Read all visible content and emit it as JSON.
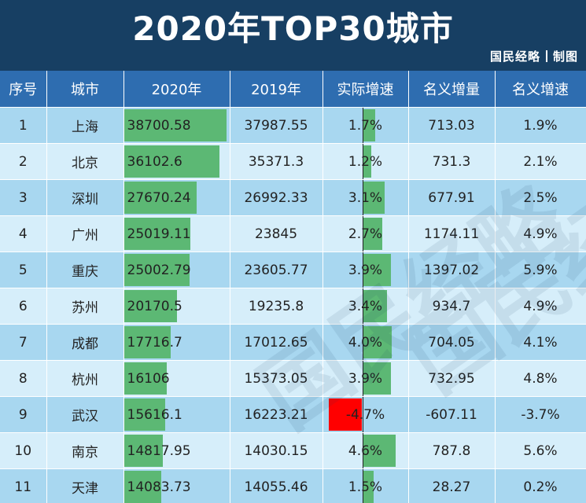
{
  "title": "2020年TOP30城市",
  "credit": {
    "brand": "国民经略",
    "label": "制图"
  },
  "watermark": "国民经略",
  "table": {
    "headers": [
      "序号",
      "城市",
      "2020年",
      "2019年",
      "实际增速",
      "名义增量",
      "名义增速"
    ],
    "rows": [
      {
        "rank": "1",
        "city": "上海",
        "y2020": "38700.58",
        "y2019": "37987.55",
        "real_growth": "1.7%",
        "real_growth_value": 1.7,
        "nominal_increase": "713.03",
        "nominal_growth": "1.9%"
      },
      {
        "rank": "2",
        "city": "北京",
        "y2020": "36102.6",
        "y2019": "35371.3",
        "real_growth": "1.2%",
        "real_growth_value": 1.2,
        "nominal_increase": "731.3",
        "nominal_growth": "2.1%"
      },
      {
        "rank": "3",
        "city": "深圳",
        "y2020": "27670.24",
        "y2019": "26992.33",
        "real_growth": "3.1%",
        "real_growth_value": 3.1,
        "nominal_increase": "677.91",
        "nominal_growth": "2.5%"
      },
      {
        "rank": "4",
        "city": "广州",
        "y2020": "25019.11",
        "y2019": "23845",
        "real_growth": "2.7%",
        "real_growth_value": 2.7,
        "nominal_increase": "1174.11",
        "nominal_growth": "4.9%"
      },
      {
        "rank": "5",
        "city": "重庆",
        "y2020": "25002.79",
        "y2019": "23605.77",
        "real_growth": "3.9%",
        "real_growth_value": 3.9,
        "nominal_increase": "1397.02",
        "nominal_growth": "5.9%"
      },
      {
        "rank": "6",
        "city": "苏州",
        "y2020": "20170.5",
        "y2019": "19235.8",
        "real_growth": "3.4%",
        "real_growth_value": 3.4,
        "nominal_increase": "934.7",
        "nominal_growth": "4.9%"
      },
      {
        "rank": "7",
        "city": "成都",
        "y2020": "17716.7",
        "y2019": "17012.65",
        "real_growth": "4.0%",
        "real_growth_value": 4.0,
        "nominal_increase": "704.05",
        "nominal_growth": "4.1%"
      },
      {
        "rank": "8",
        "city": "杭州",
        "y2020": "16106",
        "y2019": "15373.05",
        "real_growth": "3.9%",
        "real_growth_value": 3.9,
        "nominal_increase": "732.95",
        "nominal_growth": "4.8%"
      },
      {
        "rank": "9",
        "city": "武汉",
        "y2020": "15616.1",
        "y2019": "16223.21",
        "real_growth": "-4.7%",
        "real_growth_value": -4.7,
        "nominal_increase": "-607.11",
        "nominal_growth": "-3.7%"
      },
      {
        "rank": "10",
        "city": "南京",
        "y2020": "14817.95",
        "y2019": "14030.15",
        "real_growth": "4.6%",
        "real_growth_value": 4.6,
        "nominal_increase": "787.8",
        "nominal_growth": "5.6%"
      },
      {
        "rank": "11",
        "city": "天津",
        "y2020": "14083.73",
        "y2019": "14055.46",
        "real_growth": "1.5%",
        "real_growth_value": 1.5,
        "nominal_increase": "28.27",
        "nominal_growth": "0.2%"
      }
    ]
  },
  "colors": {
    "header_bg": "#173f63",
    "column_header_bg": "#2e6db0",
    "row_odd": "#a8d7f0",
    "row_even": "#d6eefa",
    "bar_green": "#5cb874",
    "bar_negative": "#ff0000"
  }
}
